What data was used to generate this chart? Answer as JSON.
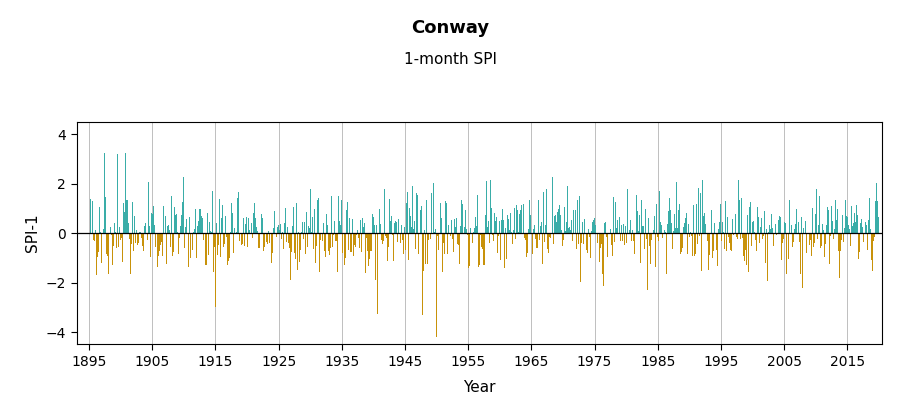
{
  "title": "Conway",
  "subtitle": "1-month SPI",
  "ylabel": "SPI-1",
  "xlabel": "Year",
  "color_positive": "#3aada8",
  "color_negative": "#c8920a",
  "ylim": [
    -4.5,
    4.5
  ],
  "yticks": [
    -4,
    -2,
    0,
    2,
    4
  ],
  "xticks": [
    1895,
    1905,
    1915,
    1925,
    1935,
    1945,
    1955,
    1965,
    1975,
    1985,
    1995,
    2005,
    2015
  ],
  "year_start": 1895,
  "year_end": 2020,
  "seed": 42,
  "background_color": "#ffffff",
  "grid_color": "#bebebe",
  "title_fontsize": 13,
  "subtitle_fontsize": 11,
  "axis_label_fontsize": 11,
  "tick_fontsize": 10,
  "xticklabel_color": "#8b0000"
}
